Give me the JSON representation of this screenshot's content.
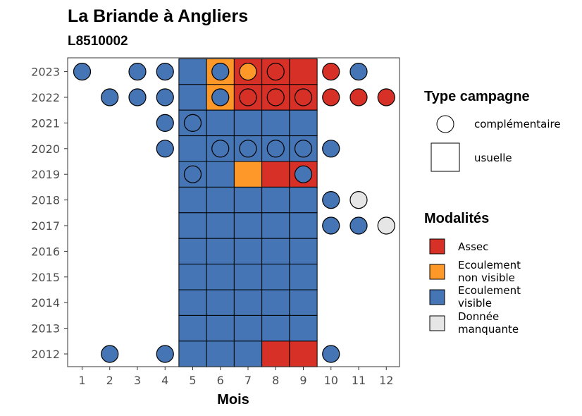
{
  "chart_data": {
    "type": "heatmap",
    "title": "La Briande à Angliers",
    "subtitle": "L8510002",
    "xlabel": "Mois",
    "ylabel": "",
    "x_ticks": [
      1,
      2,
      3,
      4,
      5,
      6,
      7,
      8,
      9,
      10,
      11,
      12
    ],
    "y_ticks": [
      2012,
      2013,
      2014,
      2015,
      2016,
      2017,
      2018,
      2019,
      2020,
      2021,
      2022,
      2023
    ],
    "grid": false,
    "colors": {
      "Assec": "#d73027",
      "Ecoulement non visible": "#fe9929",
      "Ecoulement visible": "#4575b4",
      "Donnée manquante": "#e6e6e6"
    },
    "legend": {
      "placement": "right",
      "type_title": "Type campagne",
      "type_items": [
        {
          "label": "complémentaire",
          "shape": "circle"
        },
        {
          "label": "usuelle",
          "shape": "square"
        }
      ],
      "modalite_title": "Modalités",
      "modalite_items": [
        {
          "key": "Assec",
          "lines": [
            "Assec"
          ]
        },
        {
          "key": "Ecoulement non visible",
          "lines": [
            "Ecoulement",
            "non visible"
          ]
        },
        {
          "key": "Ecoulement visible",
          "lines": [
            "Ecoulement",
            "visible"
          ]
        },
        {
          "key": "Donnée manquante",
          "lines": [
            "Donnée",
            "manquante"
          ]
        }
      ]
    },
    "usuelle": [
      {
        "year": 2023,
        "values": {
          "5": "Ecoulement visible",
          "6": "Ecoulement non visible",
          "7": "Assec",
          "8": "Assec",
          "9": "Assec"
        }
      },
      {
        "year": 2022,
        "values": {
          "5": "Ecoulement visible",
          "6": "Ecoulement non visible",
          "7": "Assec",
          "8": "Assec",
          "9": "Assec"
        }
      },
      {
        "year": 2021,
        "values": {
          "5": "Ecoulement visible",
          "6": "Ecoulement visible",
          "7": "Ecoulement visible",
          "8": "Ecoulement visible",
          "9": "Ecoulement visible"
        }
      },
      {
        "year": 2020,
        "values": {
          "5": "Ecoulement visible",
          "6": "Ecoulement visible",
          "7": "Ecoulement visible",
          "8": "Ecoulement visible",
          "9": "Ecoulement visible"
        }
      },
      {
        "year": 2019,
        "values": {
          "5": "Ecoulement visible",
          "6": "Ecoulement visible",
          "7": "Ecoulement non visible",
          "8": "Assec",
          "9": "Assec"
        }
      },
      {
        "year": 2018,
        "values": {
          "5": "Ecoulement visible",
          "6": "Ecoulement visible",
          "7": "Ecoulement visible",
          "8": "Ecoulement visible",
          "9": "Ecoulement visible"
        }
      },
      {
        "year": 2017,
        "values": {
          "5": "Ecoulement visible",
          "6": "Ecoulement visible",
          "7": "Ecoulement visible",
          "8": "Ecoulement visible",
          "9": "Ecoulement visible"
        }
      },
      {
        "year": 2016,
        "values": {
          "5": "Ecoulement visible",
          "6": "Ecoulement visible",
          "7": "Ecoulement visible",
          "8": "Ecoulement visible",
          "9": "Ecoulement visible"
        }
      },
      {
        "year": 2015,
        "values": {
          "5": "Ecoulement visible",
          "6": "Ecoulement visible",
          "7": "Ecoulement visible",
          "8": "Ecoulement visible",
          "9": "Ecoulement visible"
        }
      },
      {
        "year": 2014,
        "values": {
          "5": "Ecoulement visible",
          "6": "Ecoulement visible",
          "7": "Ecoulement visible",
          "8": "Ecoulement visible",
          "9": "Ecoulement visible"
        }
      },
      {
        "year": 2013,
        "values": {
          "5": "Ecoulement visible",
          "6": "Ecoulement visible",
          "7": "Ecoulement visible",
          "8": "Ecoulement visible",
          "9": "Ecoulement visible"
        }
      },
      {
        "year": 2012,
        "values": {
          "5": "Ecoulement visible",
          "6": "Ecoulement visible",
          "7": "Ecoulement visible",
          "8": "Assec",
          "9": "Assec"
        }
      }
    ],
    "complementaire": [
      {
        "year": 2023,
        "month": 1,
        "value": "Ecoulement visible"
      },
      {
        "year": 2023,
        "month": 3,
        "value": "Ecoulement visible"
      },
      {
        "year": 2023,
        "month": 4,
        "value": "Ecoulement visible"
      },
      {
        "year": 2023,
        "month": 6,
        "value": "Ecoulement visible"
      },
      {
        "year": 2023,
        "month": 7,
        "value": "Ecoulement non visible"
      },
      {
        "year": 2023,
        "month": 8,
        "value": "Assec"
      },
      {
        "year": 2023,
        "month": 10,
        "value": "Assec"
      },
      {
        "year": 2023,
        "month": 11,
        "value": "Ecoulement visible"
      },
      {
        "year": 2022,
        "month": 2,
        "value": "Ecoulement visible"
      },
      {
        "year": 2022,
        "month": 3,
        "value": "Ecoulement visible"
      },
      {
        "year": 2022,
        "month": 4,
        "value": "Ecoulement visible"
      },
      {
        "year": 2022,
        "month": 6,
        "value": "Ecoulement visible"
      },
      {
        "year": 2022,
        "month": 7,
        "value": "Assec"
      },
      {
        "year": 2022,
        "month": 8,
        "value": "Assec"
      },
      {
        "year": 2022,
        "month": 9,
        "value": "Assec"
      },
      {
        "year": 2022,
        "month": 10,
        "value": "Assec"
      },
      {
        "year": 2022,
        "month": 11,
        "value": "Assec"
      },
      {
        "year": 2022,
        "month": 12,
        "value": "Assec"
      },
      {
        "year": 2021,
        "month": 4,
        "value": "Ecoulement visible"
      },
      {
        "year": 2021,
        "month": 5,
        "value": "Ecoulement visible"
      },
      {
        "year": 2020,
        "month": 4,
        "value": "Ecoulement visible"
      },
      {
        "year": 2020,
        "month": 6,
        "value": "Ecoulement visible"
      },
      {
        "year": 2020,
        "month": 7,
        "value": "Ecoulement visible"
      },
      {
        "year": 2020,
        "month": 8,
        "value": "Ecoulement visible"
      },
      {
        "year": 2020,
        "month": 9,
        "value": "Ecoulement visible"
      },
      {
        "year": 2020,
        "month": 10,
        "value": "Ecoulement visible"
      },
      {
        "year": 2019,
        "month": 5,
        "value": "Ecoulement visible"
      },
      {
        "year": 2019,
        "month": 9,
        "value": "Ecoulement visible"
      },
      {
        "year": 2018,
        "month": 10,
        "value": "Ecoulement visible"
      },
      {
        "year": 2018,
        "month": 11,
        "value": "Donnée manquante"
      },
      {
        "year": 2017,
        "month": 10,
        "value": "Ecoulement visible"
      },
      {
        "year": 2017,
        "month": 11,
        "value": "Ecoulement visible"
      },
      {
        "year": 2017,
        "month": 12,
        "value": "Donnée manquante"
      },
      {
        "year": 2012,
        "month": 2,
        "value": "Ecoulement visible"
      },
      {
        "year": 2012,
        "month": 4,
        "value": "Ecoulement visible"
      },
      {
        "year": 2012,
        "month": 10,
        "value": "Ecoulement visible"
      }
    ]
  }
}
